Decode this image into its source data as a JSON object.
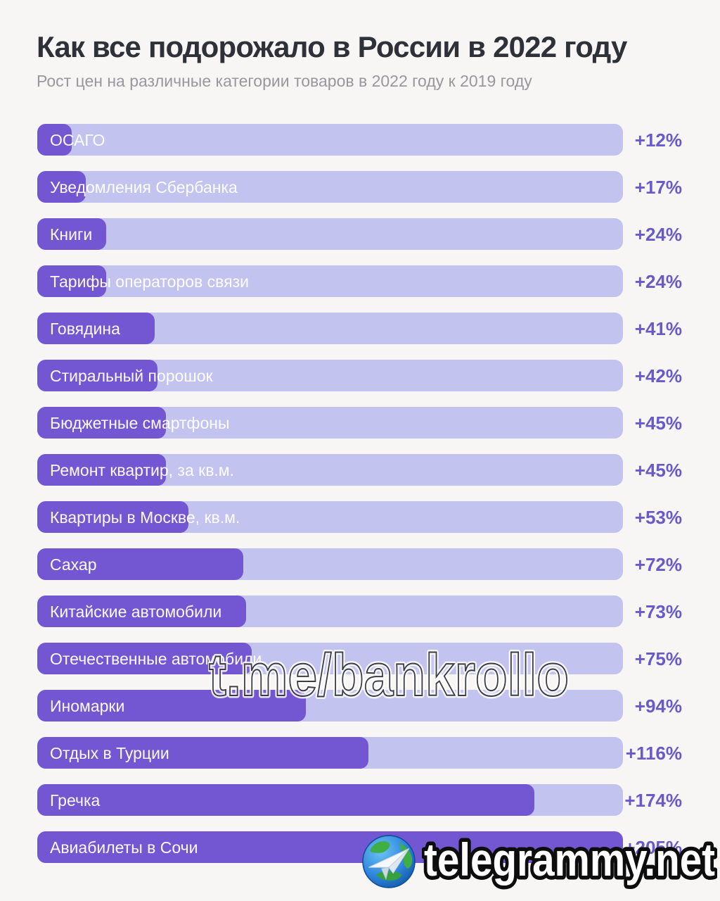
{
  "header": {
    "title": "Как все подорожало в России в 2022 году",
    "subtitle": "Рост цен на различные категории товаров в 2022 году к 2019 году"
  },
  "chart_data": {
    "type": "bar",
    "orientation": "horizontal",
    "title": "Как все подорожало в России в 2022 году",
    "subtitle": "Рост цен на различные категории товаров в 2022 году к 2019 году",
    "unit": "процент роста цен, 2022 к 2019",
    "grid": false,
    "legend": null,
    "max_value": 205,
    "categories": [
      "ОСАГО",
      "Уведомления Сбербанка",
      "Книги",
      "Тарифы операторов связи",
      "Говядина",
      "Стиральный порошок",
      "Бюджетные смартфоны",
      "Ремонт квартир, за кв.м.",
      "Квартиры в Москве, кв.м.",
      "Сахар",
      "Китайские автомобили",
      "Отечественные автомобили",
      "Иномарки",
      "Отдых в Турции",
      "Гречка",
      "Авиабилеты в Сочи"
    ],
    "values": [
      12,
      17,
      24,
      24,
      41,
      42,
      45,
      45,
      53,
      72,
      73,
      75,
      94,
      116,
      174,
      205
    ],
    "value_labels": [
      "+12%",
      "+17%",
      "+24%",
      "+24%",
      "+41%",
      "+42%",
      "+45%",
      "+45%",
      "+53%",
      "+72%",
      "+73%",
      "+75%",
      "+94%",
      "+116%",
      "+174%",
      "+205%"
    ],
    "colors": {
      "background": "#f7f6f4",
      "bar_track": "#c3c3f0",
      "bar_fill": "#7356d2",
      "value_text": "#685ac8",
      "title_text": "#2e3138",
      "subtitle_text": "#98979d"
    }
  },
  "watermarks": {
    "center_text": "t.me/bankrollo",
    "footer_text": "telegrammy.net"
  },
  "icons": {
    "footer_logo": "telegram-globe-icon"
  }
}
